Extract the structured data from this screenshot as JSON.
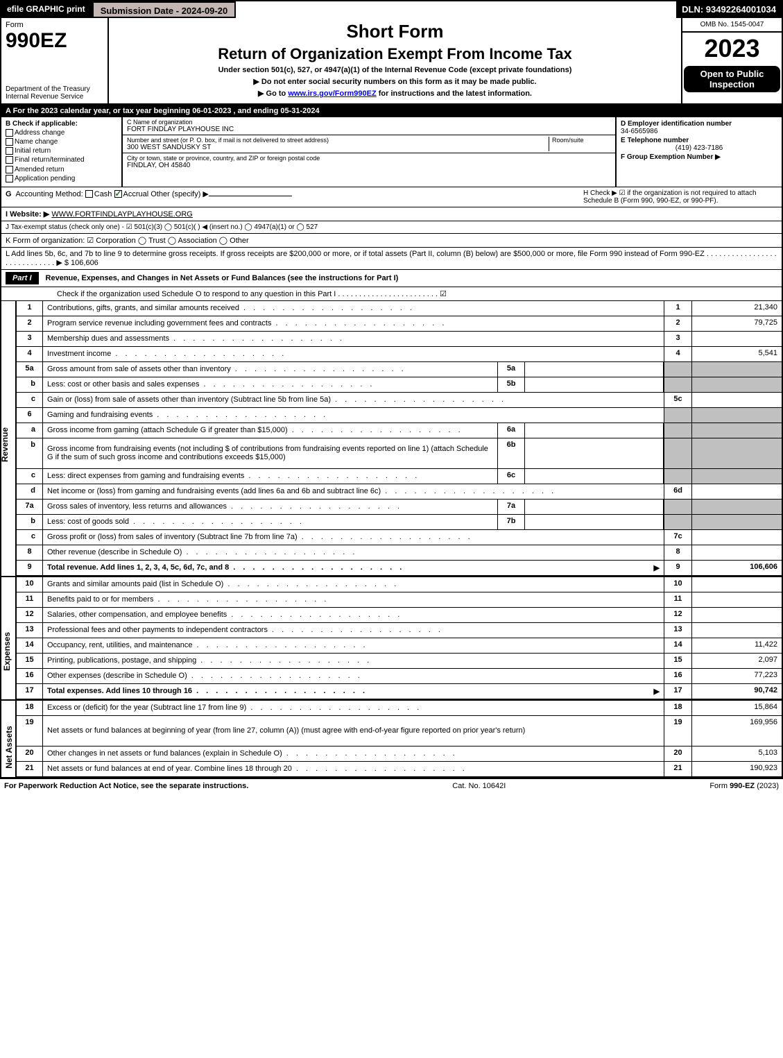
{
  "topbar": {
    "efile": "efile GRAPHIC print",
    "submission": "Submission Date - 2024-09-20",
    "dln": "DLN: 93492264001034"
  },
  "header": {
    "form_label": "Form",
    "form_number": "990EZ",
    "dept": "Department of the Treasury\nInternal Revenue Service",
    "short_form": "Short Form",
    "return_title": "Return of Organization Exempt From Income Tax",
    "under_section": "Under section 501(c), 527, or 4947(a)(1) of the Internal Revenue Code (except private foundations)",
    "no_ssn": "▶ Do not enter social security numbers on this form as it may be made public.",
    "goto": "▶ Go to www.irs.gov/Form990EZ for instructions and the latest information.",
    "omb": "OMB No. 1545-0047",
    "year": "2023",
    "open_public": "Open to Public Inspection"
  },
  "section_a": "A  For the 2023 calendar year, or tax year beginning 06-01-2023 , and ending 05-31-2024",
  "section_b": {
    "label": "B  Check if applicable:",
    "opts": [
      "Address change",
      "Name change",
      "Initial return",
      "Final return/terminated",
      "Amended return",
      "Application pending"
    ]
  },
  "section_c": {
    "name_label": "C Name of organization",
    "name": "FORT FINDLAY PLAYHOUSE INC",
    "street_label": "Number and street (or P. O. box, if mail is not delivered to street address)",
    "room_label": "Room/suite",
    "street": "300 WEST SANDUSKY ST",
    "city_label": "City or town, state or province, country, and ZIP or foreign postal code",
    "city": "FINDLAY, OH  45840"
  },
  "section_d": {
    "ein_label": "D Employer identification number",
    "ein": "34-6565986",
    "tel_label": "E Telephone number",
    "tel": "(419) 423-7186",
    "group_label": "F Group Exemption Number  ▶"
  },
  "section_g": {
    "label": "G Accounting Method:",
    "cash": "Cash",
    "accrual": "Accrual",
    "other": "Other (specify) ▶"
  },
  "section_h": "H  Check ▶ ☑ if the organization is not required to attach Schedule B (Form 990, 990-EZ, or 990-PF).",
  "section_i": {
    "label": "I Website: ▶",
    "value": "WWW.FORTFINDLAYPLAYHOUSE.ORG"
  },
  "section_j": "J Tax-exempt status (check only one) - ☑ 501(c)(3)  ◯ 501(c)(  ) ◀ (insert no.)  ◯ 4947(a)(1) or  ◯ 527",
  "section_k": "K Form of organization:  ☑ Corporation  ◯ Trust  ◯ Association  ◯ Other",
  "section_l": "L Add lines 5b, 6c, and 7b to line 9 to determine gross receipts. If gross receipts are $200,000 or more, or if total assets (Part II, column (B) below) are $500,000 or more, file Form 990 instead of Form 990-EZ . . . . . . . . . . . . . . . . . . . . . . . . . . . . . ▶ $ 106,606",
  "part1": {
    "label": "Part I",
    "title": "Revenue, Expenses, and Changes in Net Assets or Fund Balances (see the instructions for Part I)",
    "check": "Check if the organization used Schedule O to respond to any question in this Part I . . . . . . . . . . . . . . . . . . . . . . . . ☑"
  },
  "revenue": [
    {
      "n": "1",
      "desc": "Contributions, gifts, grants, and similar amounts received",
      "col": "1",
      "amt": "21,340"
    },
    {
      "n": "2",
      "desc": "Program service revenue including government fees and contracts",
      "col": "2",
      "amt": "79,725"
    },
    {
      "n": "3",
      "desc": "Membership dues and assessments",
      "col": "3",
      "amt": ""
    },
    {
      "n": "4",
      "desc": "Investment income",
      "col": "4",
      "amt": "5,541"
    },
    {
      "n": "5a",
      "desc": "Gross amount from sale of assets other than inventory",
      "sub": "5a",
      "subval": "",
      "shaded": true
    },
    {
      "n": "b",
      "desc": "Less: cost or other basis and sales expenses",
      "sub": "5b",
      "subval": "",
      "shaded": true
    },
    {
      "n": "c",
      "desc": "Gain or (loss) from sale of assets other than inventory (Subtract line 5b from line 5a)",
      "col": "5c",
      "amt": ""
    },
    {
      "n": "6",
      "desc": "Gaming and fundraising events",
      "shaded": true
    },
    {
      "n": "a",
      "desc": "Gross income from gaming (attach Schedule G if greater than $15,000)",
      "sub": "6a",
      "subval": "",
      "shaded": true
    },
    {
      "n": "b",
      "desc": "Gross income from fundraising events (not including $                     of contributions from fundraising events reported on line 1) (attach Schedule G if the sum of such gross income and contributions exceeds $15,000)",
      "sub": "6b",
      "subval": "",
      "shaded": true,
      "multi": true
    },
    {
      "n": "c",
      "desc": "Less: direct expenses from gaming and fundraising events",
      "sub": "6c",
      "subval": "",
      "shaded": true
    },
    {
      "n": "d",
      "desc": "Net income or (loss) from gaming and fundraising events (add lines 6a and 6b and subtract line 6c)",
      "col": "6d",
      "amt": ""
    },
    {
      "n": "7a",
      "desc": "Gross sales of inventory, less returns and allowances",
      "sub": "7a",
      "subval": "",
      "shaded": true
    },
    {
      "n": "b",
      "desc": "Less: cost of goods sold",
      "sub": "7b",
      "subval": "",
      "shaded": true
    },
    {
      "n": "c",
      "desc": "Gross profit or (loss) from sales of inventory (Subtract line 7b from line 7a)",
      "col": "7c",
      "amt": ""
    },
    {
      "n": "8",
      "desc": "Other revenue (describe in Schedule O)",
      "col": "8",
      "amt": ""
    },
    {
      "n": "9",
      "desc": "Total revenue. Add lines 1, 2, 3, 4, 5c, 6d, 7c, and 8",
      "col": "9",
      "amt": "106,606",
      "bold": true,
      "arrow": true
    }
  ],
  "expenses": [
    {
      "n": "10",
      "desc": "Grants and similar amounts paid (list in Schedule O)",
      "col": "10",
      "amt": ""
    },
    {
      "n": "11",
      "desc": "Benefits paid to or for members",
      "col": "11",
      "amt": ""
    },
    {
      "n": "12",
      "desc": "Salaries, other compensation, and employee benefits",
      "col": "12",
      "amt": ""
    },
    {
      "n": "13",
      "desc": "Professional fees and other payments to independent contractors",
      "col": "13",
      "amt": ""
    },
    {
      "n": "14",
      "desc": "Occupancy, rent, utilities, and maintenance",
      "col": "14",
      "amt": "11,422"
    },
    {
      "n": "15",
      "desc": "Printing, publications, postage, and shipping",
      "col": "15",
      "amt": "2,097"
    },
    {
      "n": "16",
      "desc": "Other expenses (describe in Schedule O)",
      "col": "16",
      "amt": "77,223"
    },
    {
      "n": "17",
      "desc": "Total expenses. Add lines 10 through 16",
      "col": "17",
      "amt": "90,742",
      "bold": true,
      "arrow": true
    }
  ],
  "netassets": [
    {
      "n": "18",
      "desc": "Excess or (deficit) for the year (Subtract line 17 from line 9)",
      "col": "18",
      "amt": "15,864"
    },
    {
      "n": "19",
      "desc": "Net assets or fund balances at beginning of year (from line 27, column (A)) (must agree with end-of-year figure reported on prior year's return)",
      "col": "19",
      "amt": "169,956",
      "multi": true
    },
    {
      "n": "20",
      "desc": "Other changes in net assets or fund balances (explain in Schedule O)",
      "col": "20",
      "amt": "5,103"
    },
    {
      "n": "21",
      "desc": "Net assets or fund balances at end of year. Combine lines 18 through 20",
      "col": "21",
      "amt": "190,923"
    }
  ],
  "footer": {
    "left": "For Paperwork Reduction Act Notice, see the separate instructions.",
    "center": "Cat. No. 10642I",
    "right": "Form 990-EZ (2023)"
  }
}
